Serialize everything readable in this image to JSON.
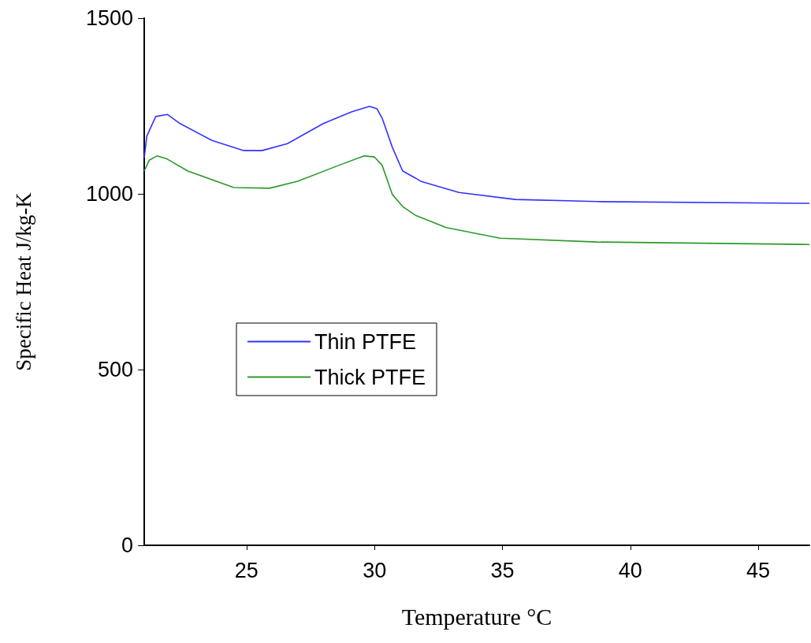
{
  "chart_data": {
    "type": "line",
    "xlabel": "Temperature °C",
    "ylabel": "Specific Heat J/kg-K",
    "xlim": [
      21,
      47
    ],
    "xticks": [
      25,
      30,
      35,
      40,
      45
    ],
    "ylim": [
      0,
      1500
    ],
    "yticks": [
      0,
      500,
      1000,
      1500
    ],
    "grid": false,
    "legend": "left",
    "marker": "none",
    "line_style": "solid",
    "series": [
      {
        "name": "Thin PTFE",
        "color": "#3333ff",
        "x": [
          21.0,
          21.1,
          21.45,
          21.9,
          22.4,
          23.65,
          24.9,
          25.6,
          26.6,
          28.0,
          29.1,
          29.8,
          30.1,
          30.3,
          30.7,
          31.1,
          31.6,
          31.8,
          33.3,
          35.5,
          38.7,
          47
        ],
        "values": [
          1103,
          1164,
          1220,
          1226,
          1200,
          1152,
          1123,
          1123,
          1143,
          1200,
          1233,
          1249,
          1242,
          1215,
          1132,
          1065,
          1045,
          1036,
          1004,
          984,
          978,
          973
        ]
      },
      {
        "name": "Thick PTFE",
        "color": "#2a9a2a",
        "x": [
          21.0,
          21.2,
          21.5,
          21.9,
          22.7,
          24.5,
          25.9,
          27.0,
          28.6,
          29.6,
          30.0,
          30.3,
          30.7,
          31.1,
          31.6,
          32.8,
          34.9,
          38.7,
          47
        ],
        "values": [
          1065,
          1096,
          1108,
          1099,
          1065,
          1018,
          1016,
          1036,
          1081,
          1108,
          1105,
          1081,
          998,
          964,
          939,
          904,
          874,
          863,
          856
        ]
      }
    ]
  }
}
